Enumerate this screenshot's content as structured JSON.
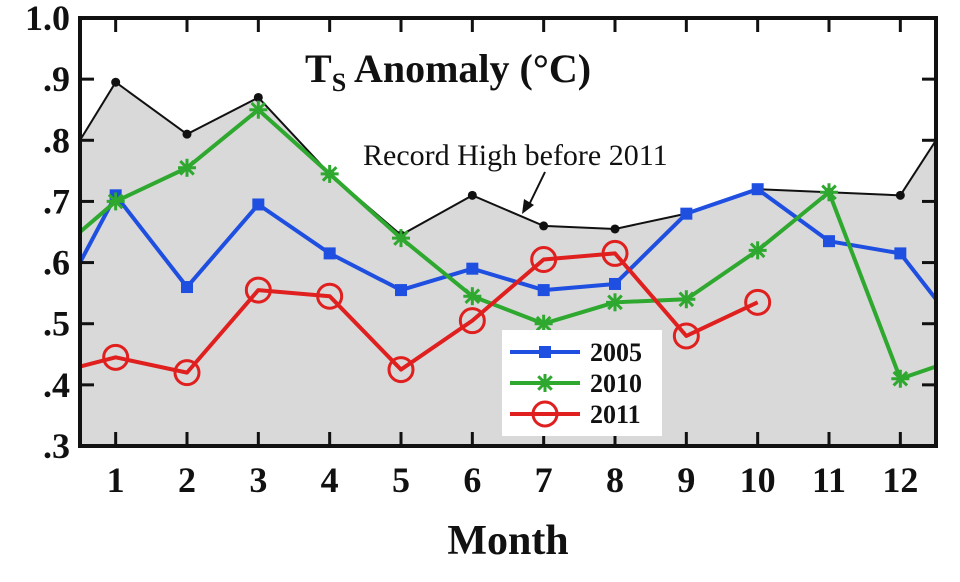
{
  "chart_data": {
    "type": "line",
    "title": "T",
    "title_sub": "S",
    "title_rest": " Anomaly (°C)",
    "xlabel": "Month",
    "ylabel": "",
    "x_ticks": [
      "1",
      "2",
      "3",
      "4",
      "5",
      "6",
      "7",
      "8",
      "9",
      "10",
      "11",
      "12"
    ],
    "y_ticks": [
      {
        "value": 1.0,
        "label": "1.0"
      },
      {
        "value": 0.9,
        "label": ".9"
      },
      {
        "value": 0.8,
        "label": ".8"
      },
      {
        "value": 0.7,
        "label": ".7"
      },
      {
        "value": 0.6,
        "label": ".6"
      },
      {
        "value": 0.5,
        "label": ".5"
      },
      {
        "value": 0.4,
        "label": ".4"
      },
      {
        "value": 0.3,
        "label": ".3"
      }
    ],
    "xlim": [
      0.5,
      12.5
    ],
    "ylim": [
      0.3,
      1.0
    ],
    "record_high": {
      "label": "Record High before 2011",
      "color": "#111111",
      "fill": "#d9d9d9",
      "x": [
        0.5,
        1,
        2,
        3,
        4,
        5,
        6,
        7,
        8,
        9,
        10,
        11,
        12,
        12.5
      ],
      "values": [
        0.8,
        0.895,
        0.81,
        0.87,
        0.745,
        0.645,
        0.71,
        0.66,
        0.655,
        0.68,
        0.72,
        0.715,
        0.71,
        0.8
      ]
    },
    "series": [
      {
        "name": "2005",
        "color": "#1f4fe0",
        "marker": "square",
        "x": [
          0.5,
          1,
          2,
          3,
          4,
          5,
          6,
          7,
          8,
          9,
          10,
          11,
          12,
          12.5
        ],
        "values": [
          0.6,
          0.71,
          0.56,
          0.695,
          0.615,
          0.555,
          0.59,
          0.555,
          0.565,
          0.68,
          0.72,
          0.635,
          0.615,
          0.54
        ]
      },
      {
        "name": "2010",
        "color": "#2ea82e",
        "marker": "star",
        "x": [
          0.5,
          1,
          2,
          3,
          4,
          5,
          6,
          7,
          8,
          9,
          10,
          11,
          12,
          12.5
        ],
        "values": [
          0.65,
          0.7,
          0.755,
          0.85,
          0.745,
          0.64,
          0.545,
          0.5,
          0.535,
          0.54,
          0.62,
          0.715,
          0.41,
          0.43
        ]
      },
      {
        "name": "2011",
        "color": "#e01f1f",
        "marker": "circle",
        "x": [
          0.5,
          1,
          2,
          3,
          4,
          5,
          6,
          7,
          8,
          9,
          10
        ],
        "values": [
          0.43,
          0.445,
          0.42,
          0.555,
          0.545,
          0.425,
          0.505,
          0.605,
          0.615,
          0.48,
          0.535
        ]
      }
    ],
    "legend_position": "bottom-center",
    "grid": false
  }
}
